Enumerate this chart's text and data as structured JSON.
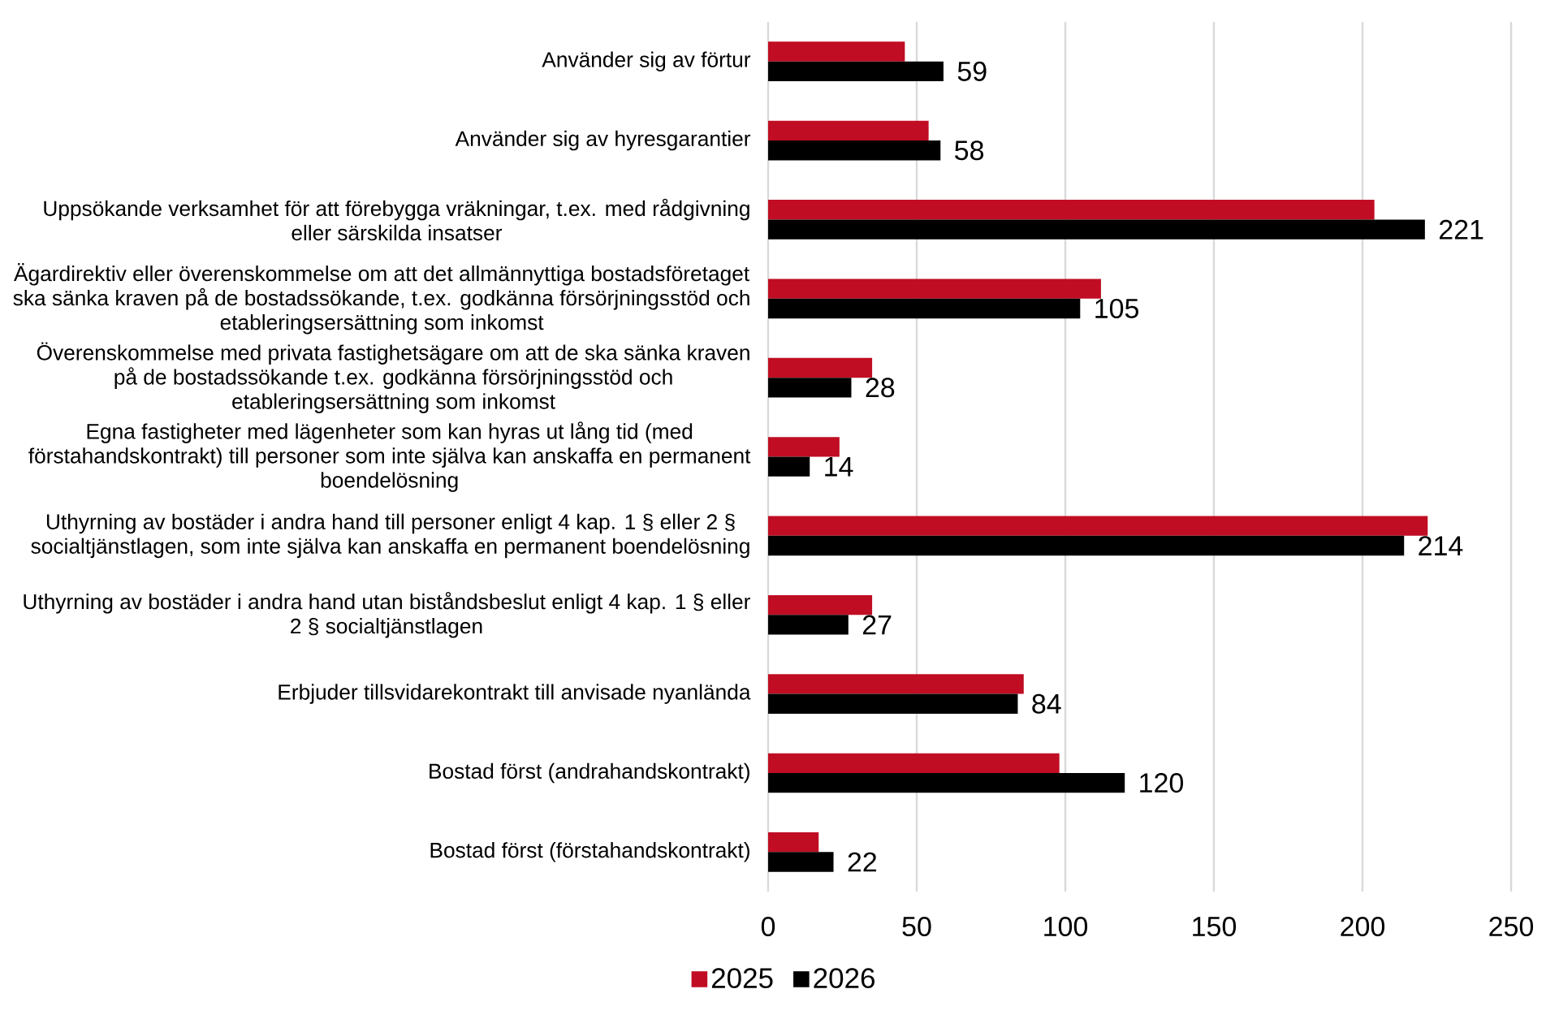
{
  "chart_data": {
    "type": "bar",
    "orientation": "horizontal",
    "categories": [
      "Använder sig av förtur",
      "Använder sig av hyresgarantier",
      "Uppsökande verksamhet för att förebygga vräkningar, t.ex. med rådgivning eller särskilda insatser",
      "Ägardirektiv eller överenskommelse om att det allmännyttiga bostadsföretaget ska sänka kraven på de bostadssökande, t.ex. godkänna försörjningsstöd och etableringsersättning som inkomst",
      "Överenskommelse med privata fastighetsägare om att de ska sänka kraven på de bostadssökande t.ex. godkänna försörjningsstöd och etableringsersättning som inkomst",
      "Egna fastigheter med lägenheter som kan hyras ut lång tid (med förstahandskontrakt) till personer som inte själva kan anskaffa en permanent boendelösning",
      "Uthyrning av bostäder i andra hand till personer enligt 4 kap. 1 § eller 2 § socialtjänstlagen, som inte själva kan anskaffa en permanent boendelösning",
      "Uthyrning av bostäder i andra hand utan biståndsbeslut enligt 4 kap. 1 § eller 2 § socialtjänstlagen",
      "Erbjuder tillsvidarekontrakt till anvisade nyanlända",
      "Bostad först (andrahandskontrakt)",
      "Bostad först (förstahandskontrakt)"
    ],
    "series": [
      {
        "name": "2025",
        "color": "#c00d23",
        "values": [
          46,
          54,
          204,
          112,
          35,
          24,
          222,
          35,
          86,
          98,
          17
        ]
      },
      {
        "name": "2026",
        "color": "#000000",
        "values": [
          59,
          58,
          221,
          105,
          28,
          14,
          214,
          27,
          84,
          120,
          22
        ],
        "value_labels": [
          "59",
          "58",
          "221",
          "105",
          "28",
          "14",
          "214",
          "27",
          "84",
          "120",
          "22"
        ]
      }
    ],
    "xlim": [
      0,
      250
    ],
    "xticks": [
      0,
      50,
      100,
      150,
      200,
      250
    ],
    "grid": "x",
    "legend": "bottom"
  }
}
